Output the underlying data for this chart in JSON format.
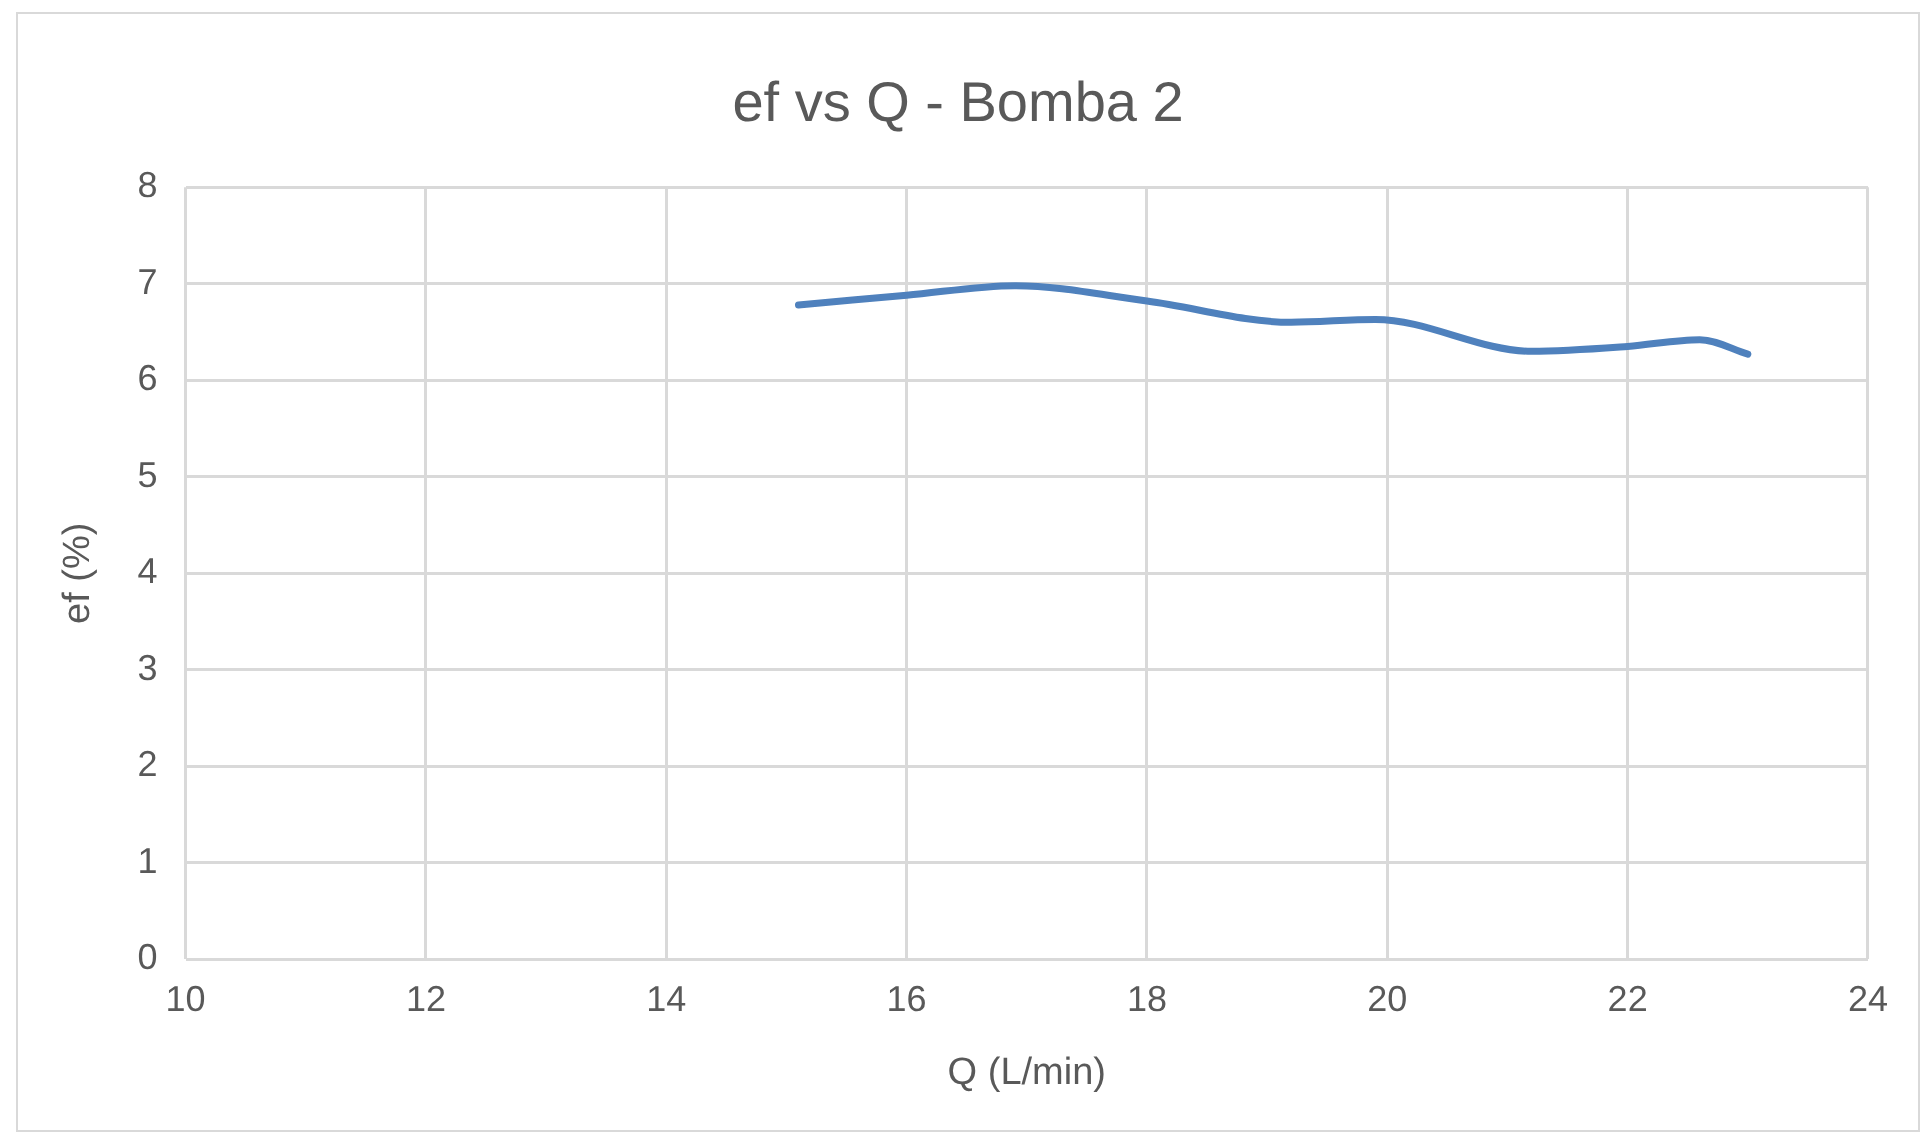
{
  "chart_data": {
    "type": "line",
    "title": "ef vs Q - Bomba 2",
    "xlabel": "Q (L/min)",
    "ylabel": "ef (%)",
    "x": [
      15.1,
      16,
      16.9,
      18,
      19.2,
      19.9,
      21.2,
      22,
      22.6,
      23.0
    ],
    "series": [
      {
        "color": "#4f81bd",
        "values": [
          6.78,
          6.88,
          6.98,
          6.82,
          6.6,
          6.63,
          6.3,
          6.35,
          6.42,
          6.27
        ]
      }
    ],
    "xlim": [
      10,
      24
    ],
    "xticks": [
      10,
      12,
      14,
      16,
      18,
      20,
      22,
      24
    ],
    "ylim": [
      0,
      8
    ],
    "yticks": [
      0,
      1,
      2,
      3,
      4,
      5,
      6,
      7,
      8
    ],
    "grid": true,
    "legend": false,
    "marker": "none",
    "line_style": "solid"
  }
}
